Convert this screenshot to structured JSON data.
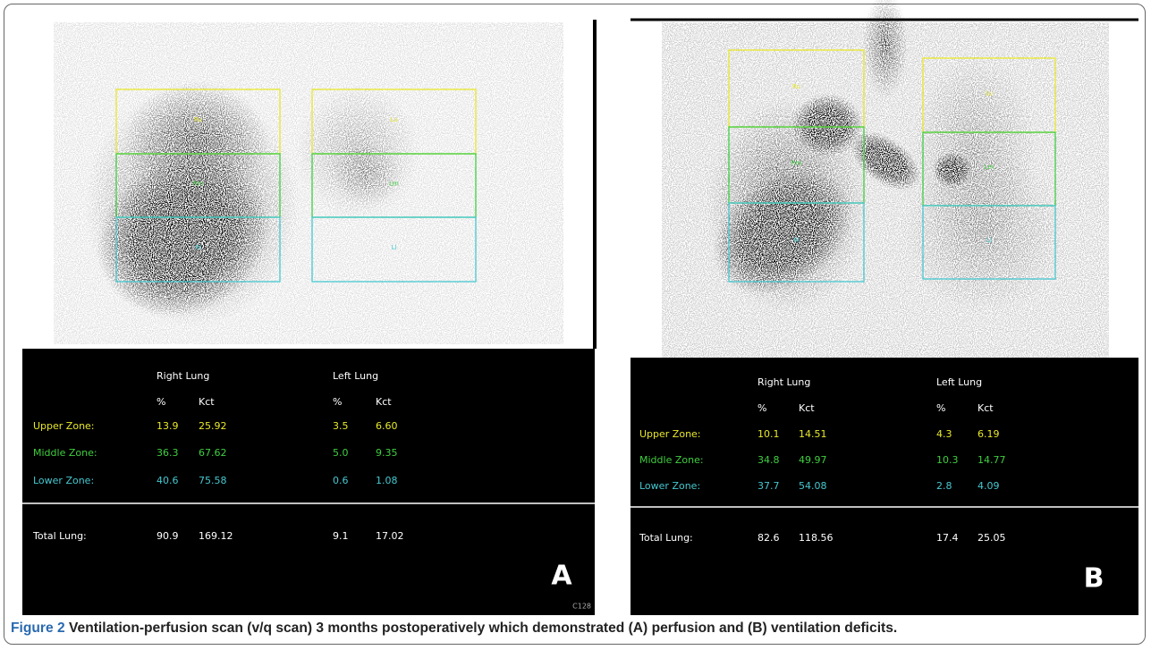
{
  "panels": [
    {
      "letter": "A",
      "corner_code": "C128",
      "zone_labels": [
        "Ru",
        "Rm",
        "Rl",
        "Lu",
        "Lm",
        "Ll"
      ],
      "table": {
        "groups": [
          "Right Lung",
          "Left Lung"
        ],
        "columns": [
          "%",
          "Kct",
          "%",
          "Kct"
        ],
        "rows": [
          {
            "label": "Upper Zone:",
            "cells": [
              "13.9",
              "25.92",
              "3.5",
              "6.60"
            ]
          },
          {
            "label": "Middle Zone:",
            "cells": [
              "36.3",
              "67.62",
              "5.0",
              "9.35"
            ]
          },
          {
            "label": "Lower Zone:",
            "cells": [
              "40.6",
              "75.58",
              "0.6",
              "1.08"
            ]
          }
        ],
        "total": {
          "label": "Total Lung:",
          "cells": [
            "90.9",
            "169.12",
            "9.1",
            "17.02"
          ]
        }
      }
    },
    {
      "letter": "B",
      "zone_labels": [
        "Ru",
        "Rm",
        "Rl",
        "Lu",
        "Lm",
        "Ll"
      ],
      "table": {
        "groups": [
          "Right Lung",
          "Left Lung"
        ],
        "columns": [
          "%",
          "Kct",
          "%",
          "Kct"
        ],
        "rows": [
          {
            "label": "Upper Zone:",
            "cells": [
              "10.1",
              "14.51",
              "4.3",
              "6.19"
            ]
          },
          {
            "label": "Middle Zone:",
            "cells": [
              "34.8",
              "49.97",
              "10.3",
              "14.77"
            ]
          },
          {
            "label": "Lower Zone:",
            "cells": [
              "37.7",
              "54.08",
              "2.8",
              "4.09"
            ]
          }
        ],
        "total": {
          "label": "Total Lung:",
          "cells": [
            "82.6",
            "118.56",
            "17.4",
            "25.05"
          ]
        }
      }
    }
  ],
  "caption": {
    "label": "Figure 2",
    "text": "Ventilation-perfusion scan (v/q scan) 3 months postoperatively which demonstrated (A) perfusion and (B) ventilation deficits."
  }
}
